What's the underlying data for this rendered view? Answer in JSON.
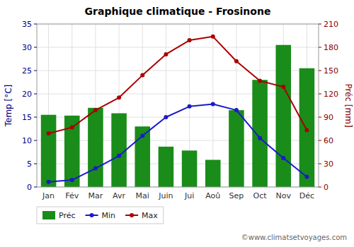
{
  "chart_data": {
    "type": "bar",
    "title": "Graphique climatique - Frosinone",
    "categories": [
      "Jan",
      "Fév",
      "Mar",
      "Avr",
      "Mai",
      "Juin",
      "Jui",
      "Aoû",
      "Sep",
      "Oct",
      "Nov",
      "Déc"
    ],
    "series": [
      {
        "name": "Préc",
        "type": "bar",
        "axis": "y2",
        "color": "#1a8c1a",
        "values": [
          93,
          92,
          102,
          95,
          78,
          52,
          47,
          35,
          99,
          138,
          183,
          153
        ]
      },
      {
        "name": "Min",
        "type": "line",
        "marker": "circle",
        "color": "#1a1acc",
        "values": [
          1.1,
          1.5,
          4.0,
          6.7,
          11.0,
          15.0,
          17.3,
          17.8,
          16.5,
          10.5,
          6.2,
          2.2
        ]
      },
      {
        "name": "Max",
        "type": "line",
        "marker": "circle",
        "color": "#aa0000",
        "values": [
          11.5,
          12.8,
          16.5,
          19.2,
          24.0,
          28.5,
          31.5,
          32.3,
          27.0,
          22.8,
          21.5,
          12.2
        ]
      }
    ],
    "y_label": "Temp [°C]",
    "y2_label": "Préc [mm]",
    "ylim": [
      0,
      35
    ],
    "yticks": [
      0,
      5,
      10,
      15,
      20,
      25,
      30,
      35
    ],
    "y2lim": [
      0,
      210
    ],
    "y2ticks": [
      0,
      30,
      60,
      90,
      120,
      150,
      180,
      210
    ],
    "grid": true,
    "legend": "bottom",
    "annotations": [
      "©www.climatsetvoyages.com"
    ]
  }
}
